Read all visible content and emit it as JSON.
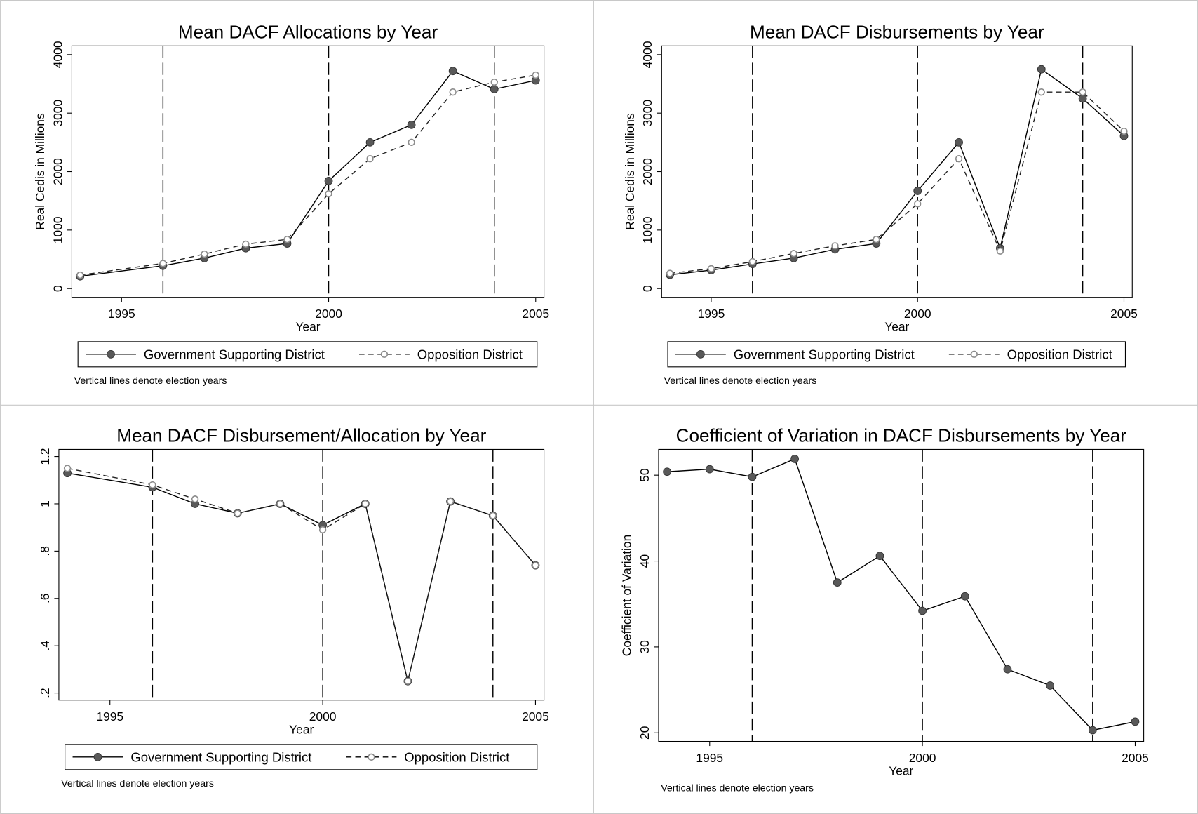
{
  "chart_data": [
    {
      "type": "line",
      "title": "Mean DACF Allocations by Year",
      "x_label": "Year",
      "y_label": "Real Cedis in Millions",
      "x": [
        1994,
        1996,
        1997,
        1998,
        1999,
        2000,
        2001,
        2002,
        2003,
        2004,
        2005
      ],
      "series": [
        {
          "name": "Government Supporting District",
          "color": "#595959",
          "values": [
            210,
            390,
            520,
            690,
            770,
            1840,
            2500,
            2800,
            3720,
            3410,
            3560
          ]
        },
        {
          "name": "Opposition District",
          "color": "#8c8c8c",
          "values": [
            230,
            430,
            590,
            760,
            840,
            1620,
            2220,
            2500,
            3360,
            3530,
            3650
          ]
        }
      ],
      "xlim": [
        1993.8,
        2005.2
      ],
      "xticks": [
        1995,
        2000,
        2005
      ],
      "ylim": [
        -150,
        4150
      ],
      "yticks": [
        0,
        1000,
        2000,
        3000,
        4000
      ],
      "vlines": [
        1996,
        2000,
        2004
      ],
      "note": "Vertical lines denote election years",
      "legend": "bottom"
    },
    {
      "type": "line",
      "title": "Mean DACF Disbursements by Year",
      "x_label": "Year",
      "y_label": "Real Cedis in Millions",
      "x": [
        1994,
        1995,
        1996,
        1997,
        1998,
        1999,
        2000,
        2001,
        2002,
        2003,
        2004,
        2005
      ],
      "series": [
        {
          "name": "Government Supporting District",
          "color": "#595959",
          "values": [
            235,
            315,
            420,
            520,
            670,
            770,
            1670,
            2500,
            690,
            3750,
            3250,
            2610
          ]
        },
        {
          "name": "Opposition District",
          "color": "#8c8c8c",
          "values": [
            260,
            340,
            460,
            600,
            730,
            840,
            1450,
            2220,
            640,
            3360,
            3360,
            2690
          ]
        }
      ],
      "xlim": [
        1993.8,
        2005.2
      ],
      "xticks": [
        1995,
        2000,
        2005
      ],
      "ylim": [
        -150,
        4150
      ],
      "yticks": [
        0,
        1000,
        2000,
        3000,
        4000
      ],
      "vlines": [
        1996,
        2000,
        2004
      ],
      "note": "Vertical lines denote election years",
      "legend": "bottom"
    },
    {
      "type": "line",
      "title": "Mean DACF Disbursement/Allocation by Year",
      "x_label": "Year",
      "x": [
        1994,
        1996,
        1997,
        1998,
        1999,
        2000,
        2001,
        2002,
        2003,
        2004,
        2005
      ],
      "series": [
        {
          "name": "Government Supporting District",
          "color": "#595959",
          "values": [
            1.13,
            1.07,
            1.0,
            0.96,
            1.0,
            0.91,
            1.0,
            0.25,
            1.01,
            0.95,
            0.74
          ]
        },
        {
          "name": "Opposition District",
          "color": "#8c8c8c",
          "values": [
            1.15,
            1.08,
            1.02,
            0.96,
            1.0,
            0.89,
            1.0,
            0.25,
            1.01,
            0.95,
            0.74
          ]
        }
      ],
      "xlim": [
        1993.8,
        2005.2
      ],
      "xticks": [
        1995,
        2000,
        2005
      ],
      "ylim": [
        0.17,
        1.23
      ],
      "yticks": [
        {
          "value": 0.2,
          "label": ".2"
        },
        {
          "value": 0.4,
          "label": ".4"
        },
        {
          "value": 0.6,
          "label": ".6"
        },
        {
          "value": 0.8,
          "label": ".8"
        },
        1,
        1.2
      ],
      "vlines": [
        1996,
        2000,
        2004
      ],
      "note": "Vertical lines denote election years",
      "legend": "bottom"
    },
    {
      "type": "line",
      "title": "Coefficient of Variation in DACF Disbursements by Year",
      "x_label": "Year",
      "y_label": "Coefficient of Variation",
      "x": [
        1994,
        1995,
        1996,
        1997,
        1998,
        1999,
        2000,
        2001,
        2002,
        2003,
        2004,
        2005
      ],
      "series": [
        {
          "color": "#595959",
          "values": [
            50.4,
            50.7,
            49.8,
            51.9,
            37.5,
            40.6,
            34.2,
            35.9,
            27.4,
            25.5,
            20.3,
            21.3
          ]
        }
      ],
      "xlim": [
        1993.8,
        2005.2
      ],
      "xticks": [
        1995,
        2000,
        2005
      ],
      "ylim": [
        19,
        53
      ],
      "yticks": [
        20,
        30,
        40,
        50
      ],
      "vlines": [
        1996,
        2000,
        2004
      ],
      "note": "Vertical lines denote election years"
    }
  ]
}
